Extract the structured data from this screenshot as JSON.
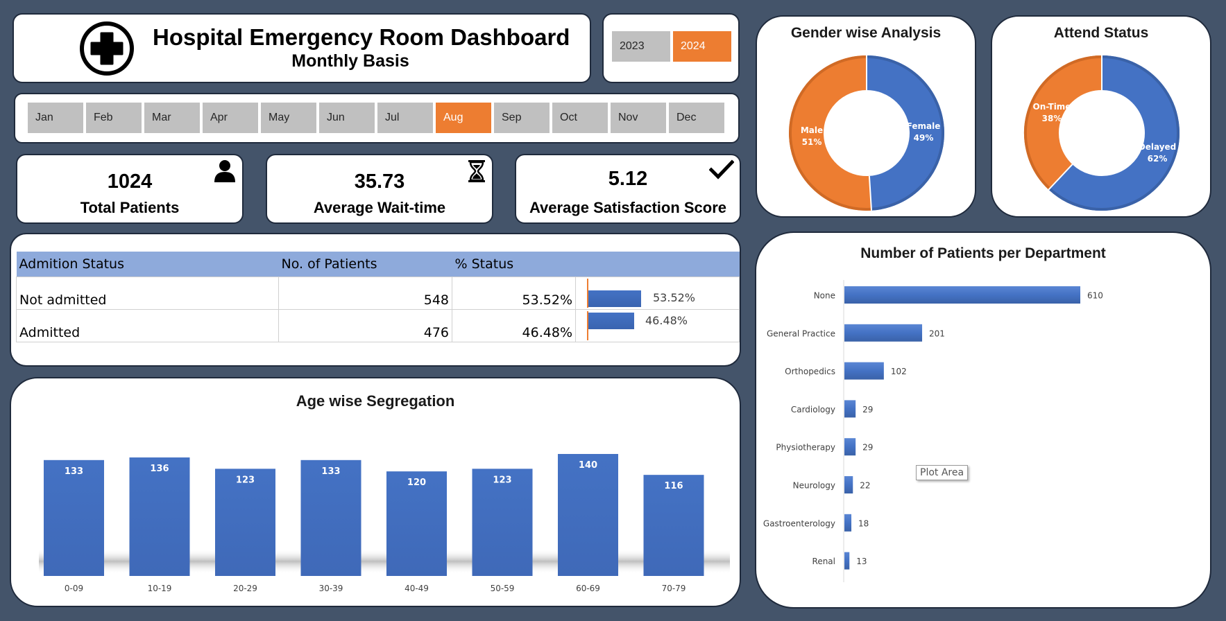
{
  "header": {
    "title": "Hospital Emergency Room Dashboard",
    "subtitle": "Monthly Basis",
    "logo_icon": "medical-cross-icon"
  },
  "year_slicer": {
    "items": [
      {
        "label": "2023",
        "selected": false
      },
      {
        "label": "2024",
        "selected": true
      }
    ]
  },
  "month_slicer": {
    "items": [
      {
        "label": "Jan",
        "selected": false
      },
      {
        "label": "Feb",
        "selected": false
      },
      {
        "label": "Mar",
        "selected": false
      },
      {
        "label": "Apr",
        "selected": false
      },
      {
        "label": "May",
        "selected": false
      },
      {
        "label": "Jun",
        "selected": false
      },
      {
        "label": "Jul",
        "selected": false
      },
      {
        "label": "Aug",
        "selected": true
      },
      {
        "label": "Sep",
        "selected": false
      },
      {
        "label": "Oct",
        "selected": false
      },
      {
        "label": "Nov",
        "selected": false
      },
      {
        "label": "Dec",
        "selected": false
      }
    ]
  },
  "kpis": {
    "total_patients": {
      "value": "1024",
      "label": "Total Patients",
      "icon": "person-icon"
    },
    "avg_wait": {
      "value": "35.73",
      "label": "Average Wait-time",
      "icon": "hourglass-icon"
    },
    "avg_satisfaction": {
      "value": "5.12",
      "label": "Average Satisfaction Score",
      "icon": "checkmark-icon"
    }
  },
  "admission_table": {
    "headers": [
      "Admition Status",
      "No. of Patients",
      "% Status"
    ],
    "rows": [
      {
        "status": "Not admitted",
        "patients": "548",
        "percent": "53.52%",
        "bar_fraction": 0.5352
      },
      {
        "status": "Admitted",
        "patients": "476",
        "percent": "46.48%",
        "bar_fraction": 0.4648
      }
    ]
  },
  "colors": {
    "background": "#44546a",
    "accent_orange": "#ed7d31",
    "accent_blue": "#4472c4",
    "table_header": "#8eaadb",
    "slicer_grey": "#c0c0c0"
  },
  "chart_data": [
    {
      "id": "age",
      "type": "bar",
      "title": "Age wise Segregation",
      "categories": [
        "0-09",
        "10-19",
        "20-29",
        "30-39",
        "40-49",
        "50-59",
        "60-69",
        "70-79"
      ],
      "values": [
        133,
        136,
        123,
        133,
        120,
        123,
        140,
        116
      ],
      "ylim": [
        0,
        140
      ],
      "grid": false
    },
    {
      "id": "gender",
      "type": "pie",
      "title": "Gender wise Analysis",
      "slices": [
        {
          "name": "Female",
          "value": 49,
          "label": "49%",
          "color": "#4472c4"
        },
        {
          "name": "Male",
          "value": 51,
          "label": "51%",
          "color": "#ed7d31"
        }
      ]
    },
    {
      "id": "attend",
      "type": "pie",
      "title": "Attend Status",
      "slices": [
        {
          "name": "Delayed",
          "value": 62,
          "label": "62%",
          "color": "#4472c4"
        },
        {
          "name": "On-Time",
          "value": 38,
          "label": "38%",
          "color": "#ed7d31"
        }
      ]
    },
    {
      "id": "dept",
      "type": "bar",
      "orientation": "horizontal",
      "title": "Number of Patients per Department",
      "categories": [
        "None",
        "General Practice",
        "Orthopedics",
        "Cardiology",
        "Physiotherapy",
        "Neurology",
        "Gastroenterology",
        "Renal"
      ],
      "values": [
        610,
        201,
        102,
        29,
        29,
        22,
        18,
        13
      ],
      "xlim": [
        0,
        610
      ],
      "grid": false
    }
  ],
  "tooltip": {
    "text": "Plot Area"
  }
}
